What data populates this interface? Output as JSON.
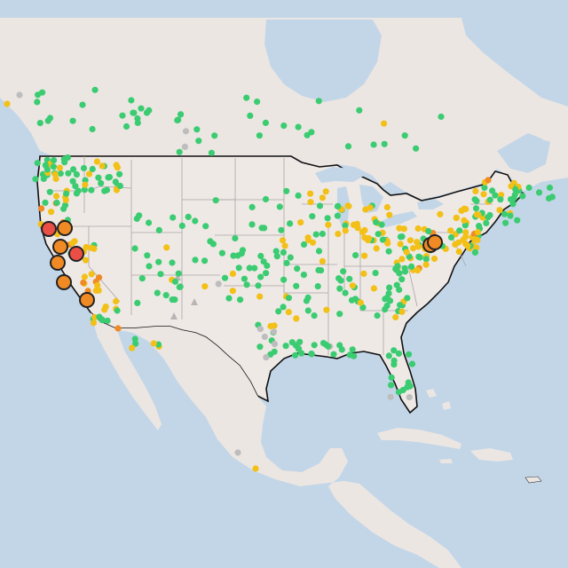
{
  "map": {
    "colors": {
      "ocean": "#c3d6e7",
      "land": "#efe9e6",
      "land_outside": "#ece6e3",
      "lakes": "#c3d6e7",
      "state_lines": "#a9a4a4",
      "us_border": "#111111",
      "green": "#3bcc72",
      "yellow": "#f2c017",
      "orange": "#f08a24",
      "red": "#ea4e45",
      "gray": "#bdbdbd"
    },
    "categories": [
      {
        "id": "good",
        "color_key": "green"
      },
      {
        "id": "moderate",
        "color_key": "yellow"
      },
      {
        "id": "unhealthy-sensitive",
        "color_key": "orange"
      },
      {
        "id": "unhealthy",
        "color_key": "red"
      },
      {
        "id": "no-data",
        "color_key": "gray"
      }
    ],
    "large_markers": [
      {
        "category": "unhealthy"
      },
      {
        "category": "unhealthy-sensitive"
      },
      {
        "category": "unhealthy-sensitive"
      },
      {
        "category": "unhealthy"
      },
      {
        "category": "unhealthy-sensitive"
      },
      {
        "category": "unhealthy-sensitive"
      },
      {
        "category": "unhealthy-sensitive"
      },
      {
        "category": "unhealthy-sensitive"
      },
      {
        "category": "unhealthy-sensitive"
      }
    ]
  }
}
